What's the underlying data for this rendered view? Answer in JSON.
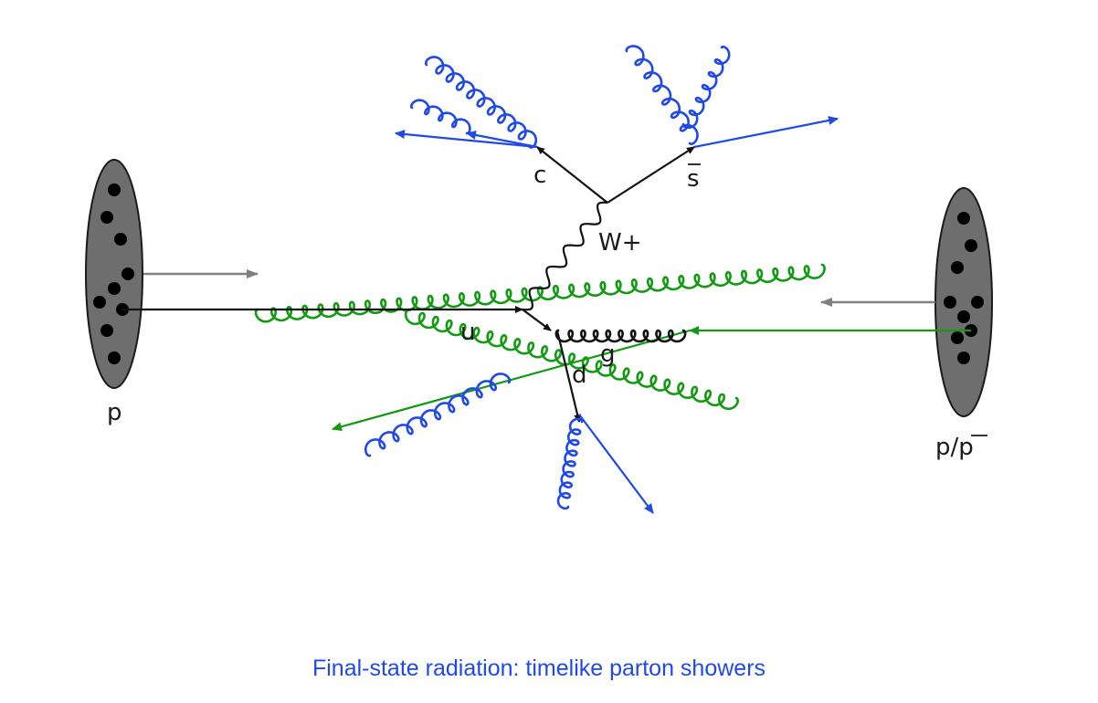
{
  "labels": {
    "proton_left": "p",
    "proton_right": "p/p",
    "quark_c": "c",
    "quark_sbar": "s",
    "boson_w": "W+",
    "quark_u": "u",
    "quark_d": "d",
    "gluon_g": "g"
  },
  "caption": "Final-state radiation: timelike parton showers",
  "colors": {
    "ink": "#111111",
    "proton_fill": "#6e6e6e",
    "beam_arrow": "#808080",
    "initial_state": "#139a13",
    "final_state": "#1f49e8",
    "caption": "#1f49e8"
  }
}
